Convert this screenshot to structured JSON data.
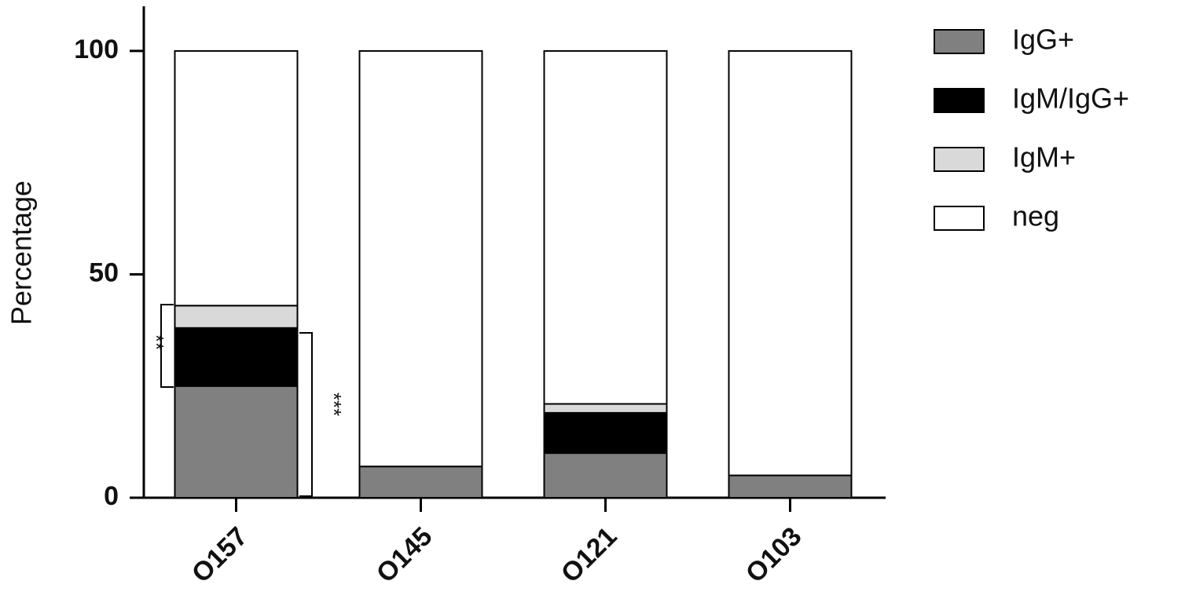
{
  "chart_data": {
    "type": "stacked_bar",
    "y_label": "Percentage",
    "categories": [
      "O157",
      "O145",
      "O121",
      "O103"
    ],
    "series": [
      {
        "name": "IgG+",
        "color": "#808080",
        "values": [
          25,
          7,
          10,
          5
        ]
      },
      {
        "name": "IgM/IgG+",
        "color": "#000000",
        "values": [
          13,
          0,
          9,
          0
        ]
      },
      {
        "name": "IgM+",
        "color": "#d9d9d9",
        "values": [
          5,
          0,
          2,
          0
        ]
      },
      {
        "name": "neg",
        "color": "#ffffff",
        "values": [
          57,
          93,
          79,
          95
        ]
      }
    ],
    "ylim": [
      0,
      110
    ],
    "yticks": [
      0,
      50,
      100
    ],
    "grid": false,
    "legend": "right",
    "annotations": [
      "**",
      "***"
    ]
  }
}
